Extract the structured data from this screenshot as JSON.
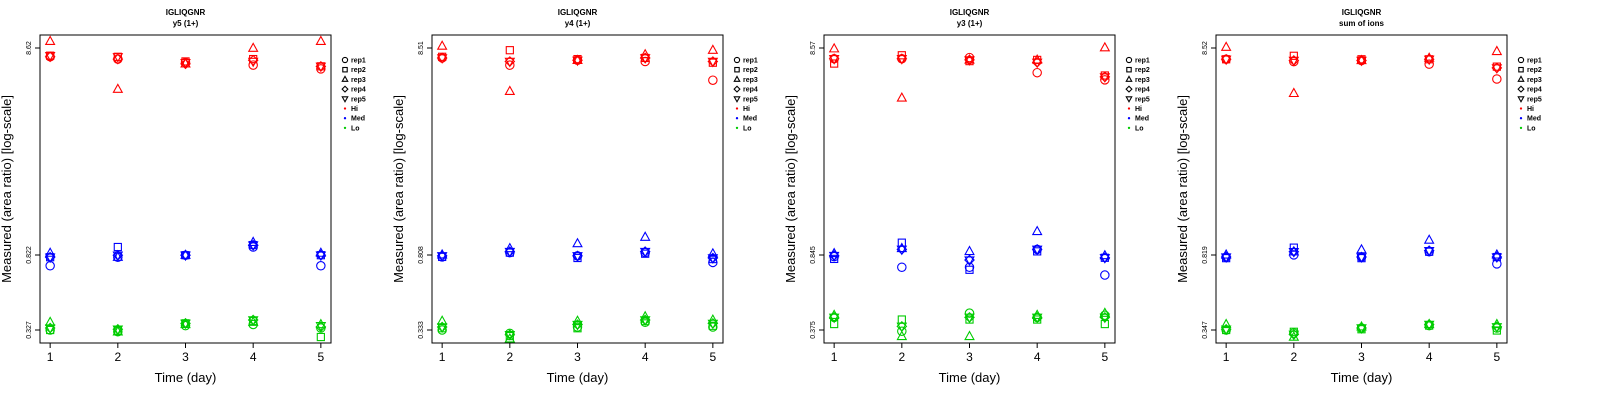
{
  "figure": {
    "layout": "1x4 small multiples",
    "shared_labels": {
      "xlabel": "Time (day)",
      "ylabel": "Measured (area ratio) [log-scale]"
    },
    "legend_items": [
      {
        "label": "rep1",
        "marker": "circle",
        "color": "#000000"
      },
      {
        "label": "rep2",
        "marker": "square",
        "color": "#000000"
      },
      {
        "label": "rep3",
        "marker": "triangle-up",
        "color": "#000000"
      },
      {
        "label": "rep4",
        "marker": "diamond",
        "color": "#000000"
      },
      {
        "label": "rep5",
        "marker": "triangle-down",
        "color": "#000000"
      },
      {
        "label": "Hi",
        "marker": "dot",
        "color": "#ff0000"
      },
      {
        "label": "Med",
        "marker": "dot",
        "color": "#0000ff"
      },
      {
        "label": "Lo",
        "marker": "dot",
        "color": "#00cc00"
      }
    ],
    "colors": {
      "Hi": "#ff0000",
      "Med": "#0000ff",
      "Lo": "#00cc00"
    }
  },
  "chart_data": [
    {
      "type": "scatter",
      "title": "IGLIQGNR",
      "subtitle": "y5 (1+)",
      "xlabel": "Time (day)",
      "ylabel": "Measured (area ratio) [log-scale]",
      "x_ticks": [
        "1",
        "2",
        "3",
        "4",
        "5"
      ],
      "y_ticks": [
        {
          "label": "0.327",
          "value": 0.327
        },
        {
          "label": "0.822",
          "value": 0.822
        },
        {
          "label": "8.62",
          "value": 8.62
        }
      ],
      "xlim": [
        1,
        5
      ],
      "ylim_log": true,
      "legend_position": "right",
      "series": [
        {
          "name": "Hi",
          "color": "#ff0000",
          "points": {
            "rep1": [
              7.8,
              7.6,
              7.3,
              7.1,
              6.8
            ],
            "rep2": [
              7.9,
              7.8,
              7.4,
              7.6,
              7.0
            ],
            "rep3": [
              9.3,
              5.4,
              7.2,
              8.6,
              9.3
            ],
            "rep4": [
              7.8,
              7.6,
              7.2,
              7.5,
              7.0
            ],
            "rep5": [
              7.9,
              7.8,
              7.3,
              7.4,
              7.0
            ]
          }
        },
        {
          "name": "Med",
          "color": "#0000ff",
          "points": {
            "rep1": [
              0.72,
              0.8,
              0.82,
              0.9,
              0.72
            ],
            "rep2": [
              0.8,
              0.9,
              0.82,
              0.92,
              0.82
            ],
            "rep3": [
              0.84,
              0.8,
              0.82,
              0.95,
              0.84
            ],
            "rep4": [
              0.8,
              0.82,
              0.82,
              0.92,
              0.82
            ],
            "rep5": [
              0.8,
              0.82,
              0.82,
              0.92,
              0.82
            ]
          }
        },
        {
          "name": "Lo",
          "color": "#00cc00",
          "points": {
            "rep1": [
              0.327,
              0.32,
              0.345,
              0.35,
              0.335
            ],
            "rep2": [
              0.327,
              0.325,
              0.355,
              0.365,
              0.3
            ],
            "rep3": [
              0.36,
              0.32,
              0.35,
              0.36,
              0.35
            ],
            "rep4": [
              0.335,
              0.33,
              0.355,
              0.37,
              0.34
            ],
            "rep5": [
              0.335,
              0.33,
              0.355,
              0.37,
              0.345
            ]
          }
        }
      ]
    },
    {
      "type": "scatter",
      "title": "IGLIQGNR",
      "subtitle": "y4 (1+)",
      "xlabel": "Time (day)",
      "ylabel": "Measured (area ratio) [log-scale]",
      "x_ticks": [
        "1",
        "2",
        "3",
        "4",
        "5"
      ],
      "y_ticks": [
        {
          "label": "0.333",
          "value": 0.333
        },
        {
          "label": "0.808",
          "value": 0.808
        },
        {
          "label": "8.51",
          "value": 8.51
        }
      ],
      "xlim": [
        1,
        5
      ],
      "ylim_log": true,
      "legend_position": "right",
      "series": [
        {
          "name": "Hi",
          "color": "#ff0000",
          "points": {
            "rep1": [
              7.6,
              7.0,
              7.4,
              7.3,
              5.9
            ],
            "rep2": [
              7.7,
              8.3,
              7.5,
              7.6,
              7.2
            ],
            "rep3": [
              8.7,
              5.2,
              7.4,
              7.9,
              8.3
            ],
            "rep4": [
              7.6,
              7.3,
              7.4,
              7.6,
              7.3
            ],
            "rep5": [
              7.6,
              7.3,
              7.4,
              7.6,
              7.3
            ]
          }
        },
        {
          "name": "Med",
          "color": "#0000ff",
          "points": {
            "rep1": [
              0.79,
              0.83,
              0.8,
              0.83,
              0.74
            ],
            "rep2": [
              0.79,
              0.83,
              0.78,
              0.82,
              0.77
            ],
            "rep3": [
              0.81,
              0.87,
              0.92,
              0.99,
              0.82
            ],
            "rep4": [
              0.8,
              0.84,
              0.8,
              0.84,
              0.78
            ],
            "rep5": [
              0.8,
              0.84,
              0.8,
              0.84,
              0.78
            ]
          }
        },
        {
          "name": "Lo",
          "color": "#00cc00",
          "points": {
            "rep1": [
              0.333,
              0.32,
              0.345,
              0.365,
              0.345
            ],
            "rep2": [
              0.34,
              0.31,
              0.34,
              0.37,
              0.35
            ],
            "rep3": [
              0.37,
              0.3,
              0.37,
              0.39,
              0.375
            ],
            "rep4": [
              0.345,
              0.315,
              0.355,
              0.375,
              0.36
            ],
            "rep5": [
              0.345,
              0.315,
              0.355,
              0.375,
              0.36
            ]
          }
        }
      ]
    },
    {
      "type": "scatter",
      "title": "IGLIQGNR",
      "subtitle": "y3 (1+)",
      "xlabel": "Time (day)",
      "ylabel": "Measured (area ratio) [log-scale]",
      "x_ticks": [
        "1",
        "2",
        "3",
        "4",
        "5"
      ],
      "y_ticks": [
        {
          "label": "0.375",
          "value": 0.375
        },
        {
          "label": "0.845",
          "value": 0.845
        },
        {
          "label": "8.57",
          "value": 8.57
        }
      ],
      "xlim": [
        1,
        5
      ],
      "ylim_log": true,
      "legend_position": "right",
      "series": [
        {
          "name": "Hi",
          "color": "#ff0000",
          "points": {
            "rep1": [
              7.6,
              7.6,
              7.7,
              6.5,
              6.0
            ],
            "rep2": [
              7.2,
              7.9,
              7.4,
              7.5,
              6.3
            ],
            "rep3": [
              8.5,
              4.9,
              7.5,
              7.5,
              8.6
            ],
            "rep4": [
              7.6,
              7.6,
              7.5,
              7.3,
              6.2
            ],
            "rep5": [
              7.6,
              7.6,
              7.5,
              7.3,
              6.2
            ]
          }
        },
        {
          "name": "Med",
          "color": "#0000ff",
          "points": {
            "rep1": [
              0.83,
              0.74,
              0.74,
              0.9,
              0.68
            ],
            "rep2": [
              0.81,
              0.97,
              0.72,
              0.88,
              0.82
            ],
            "rep3": [
              0.86,
              0.91,
              0.88,
              1.1,
              0.84
            ],
            "rep4": [
              0.84,
              0.9,
              0.8,
              0.9,
              0.82
            ],
            "rep5": [
              0.84,
              0.9,
              0.8,
              0.9,
              0.82
            ]
          }
        },
        {
          "name": "Lo",
          "color": "#00cc00",
          "points": {
            "rep1": [
              0.43,
              0.37,
              0.45,
              0.43,
              0.44
            ],
            "rep2": [
              0.4,
              0.42,
              0.42,
              0.42,
              0.4
            ],
            "rep3": [
              0.44,
              0.35,
              0.35,
              0.44,
              0.45
            ],
            "rep4": [
              0.43,
              0.39,
              0.43,
              0.43,
              0.43
            ],
            "rep5": [
              0.43,
              0.39,
              0.43,
              0.43,
              0.43
            ]
          }
        }
      ]
    },
    {
      "type": "scatter",
      "title": "IGLIQGNR",
      "subtitle": "sum of ions",
      "xlabel": "Time (day)",
      "ylabel": "Measured (area ratio) [log-scale]",
      "x_ticks": [
        "1",
        "2",
        "3",
        "4",
        "5"
      ],
      "y_ticks": [
        {
          "label": "0.347",
          "value": 0.347
        },
        {
          "label": "0.819",
          "value": 0.819
        },
        {
          "label": "8.52",
          "value": 8.52
        }
      ],
      "xlim": [
        1,
        5
      ],
      "ylim_log": true,
      "legend_position": "right",
      "series": [
        {
          "name": "Hi",
          "color": "#ff0000",
          "points": {
            "rep1": [
              7.5,
              7.3,
              7.4,
              7.1,
              6.0
            ],
            "rep2": [
              7.5,
              7.8,
              7.5,
              7.5,
              6.9
            ],
            "rep3": [
              8.6,
              5.1,
              7.4,
              7.6,
              8.2
            ],
            "rep4": [
              7.5,
              7.4,
              7.4,
              7.5,
              6.8
            ],
            "rep5": [
              7.5,
              7.4,
              7.4,
              7.5,
              6.8
            ]
          }
        },
        {
          "name": "Med",
          "color": "#0000ff",
          "points": {
            "rep1": [
              0.8,
              0.82,
              0.8,
              0.85,
              0.74
            ],
            "rep2": [
              0.79,
              0.89,
              0.79,
              0.85,
              0.8
            ],
            "rep3": [
              0.82,
              0.85,
              0.87,
              0.97,
              0.82
            ],
            "rep4": [
              0.8,
              0.85,
              0.8,
              0.86,
              0.8
            ],
            "rep5": [
              0.8,
              0.85,
              0.8,
              0.86,
              0.8
            ]
          }
        },
        {
          "name": "Lo",
          "color": "#00cc00",
          "points": {
            "rep1": [
              0.347,
              0.335,
              0.355,
              0.365,
              0.355
            ],
            "rep2": [
              0.347,
              0.34,
              0.35,
              0.365,
              0.345
            ],
            "rep3": [
              0.37,
              0.32,
              0.36,
              0.37,
              0.37
            ],
            "rep4": [
              0.35,
              0.33,
              0.355,
              0.37,
              0.36
            ],
            "rep5": [
              0.35,
              0.33,
              0.355,
              0.37,
              0.36
            ]
          }
        }
      ]
    }
  ]
}
